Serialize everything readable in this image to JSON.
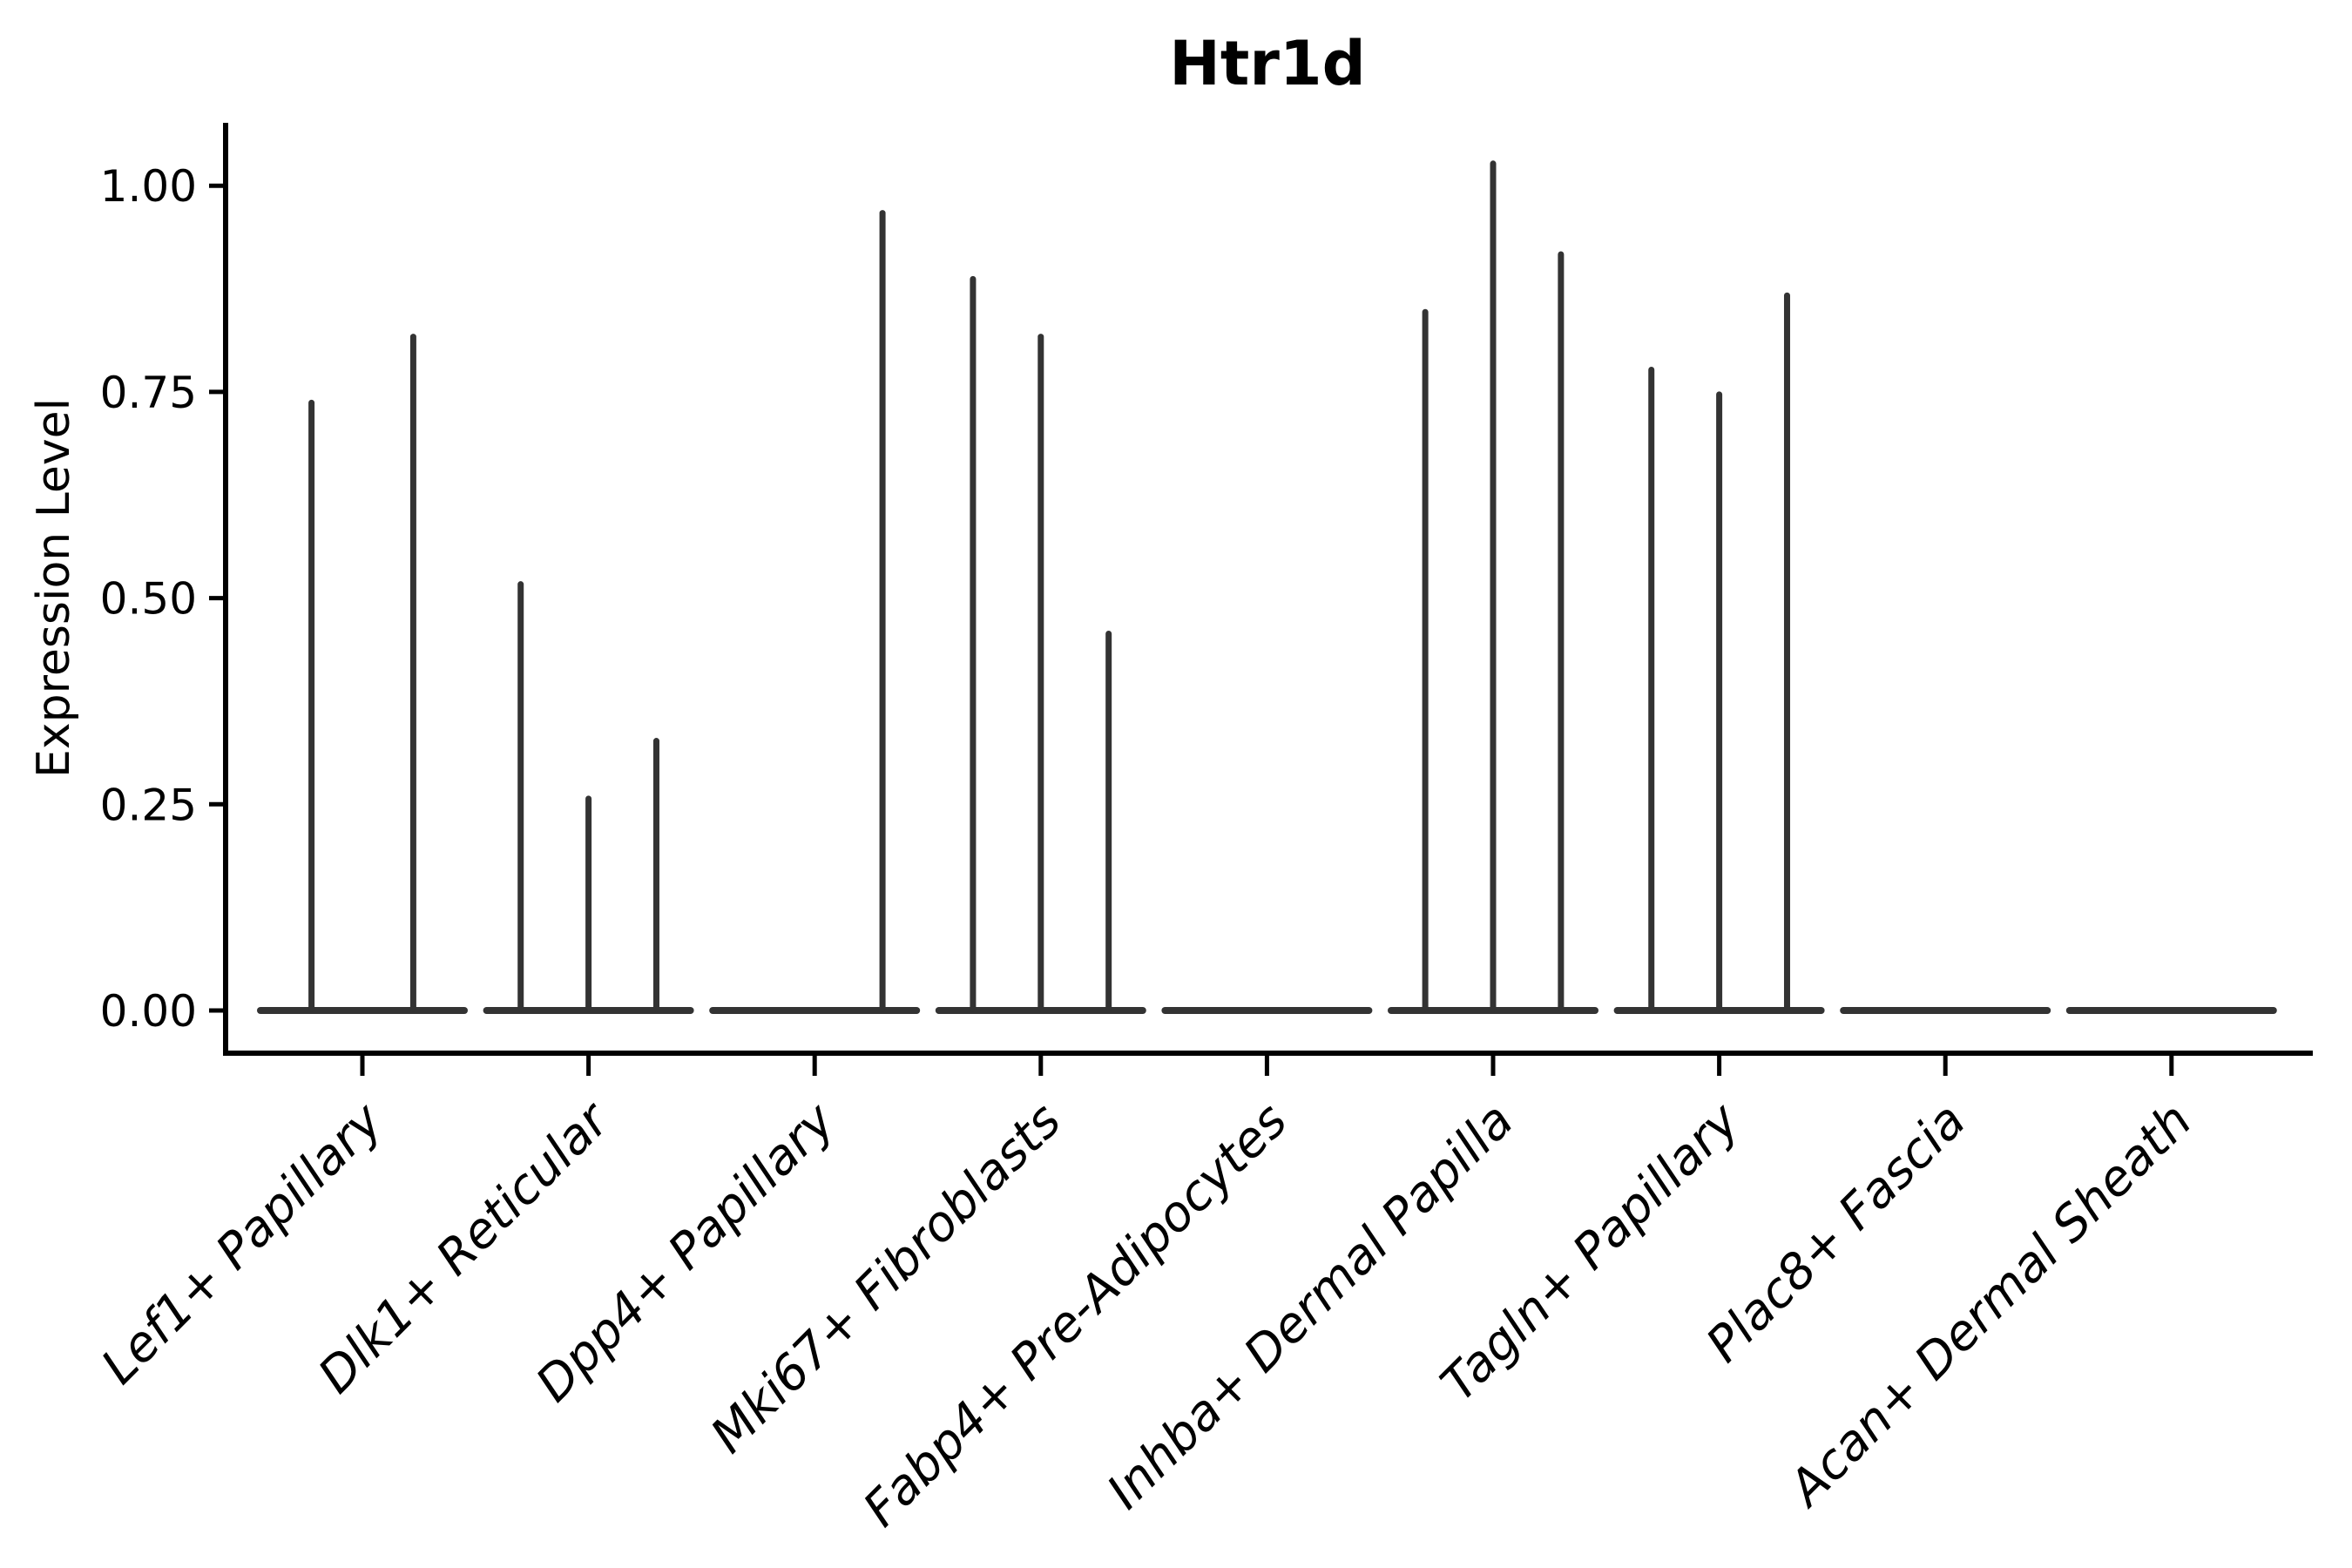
{
  "chart_data": {
    "type": "violin",
    "title": "Htr1d",
    "ylabel": "Expression Level",
    "xlabel": "",
    "ylim": [
      -0.05,
      1.08
    ],
    "grid": false,
    "legend": "none",
    "violin_color": "#333333",
    "axis_color": "#000000",
    "yticks": [
      {
        "label": "1.00",
        "value": 1.0
      },
      {
        "label": "0.75",
        "value": 0.75
      },
      {
        "label": "0.50",
        "value": 0.5
      },
      {
        "label": "0.25",
        "value": 0.25
      },
      {
        "label": "0.00",
        "value": 0.0
      }
    ],
    "categories": [
      {
        "label": "Lef1+ Papillary",
        "violins": [
          {
            "pos": -0.225,
            "peak": 0.74
          },
          {
            "pos": 0.225,
            "peak": 0.82
          }
        ]
      },
      {
        "label": "Dlk1+ Reticular",
        "violins": [
          {
            "pos": -0.3,
            "peak": 0.52
          },
          {
            "pos": 0.0,
            "peak": 0.26
          },
          {
            "pos": 0.3,
            "peak": 0.33
          }
        ]
      },
      {
        "label": "Dpp4+ Papillary",
        "violins": [
          {
            "pos": 0.3,
            "peak": 0.97
          }
        ]
      },
      {
        "label": "Mki67+ Fibroblasts",
        "violins": [
          {
            "pos": -0.3,
            "peak": 0.89
          },
          {
            "pos": 0.0,
            "peak": 0.82
          },
          {
            "pos": 0.3,
            "peak": 0.46
          }
        ]
      },
      {
        "label": "Fabp4+ Pre-Adipocytes",
        "violins": []
      },
      {
        "label": "Inhba+ Dermal Papilla",
        "violins": [
          {
            "pos": -0.3,
            "peak": 0.85
          },
          {
            "pos": 0.0,
            "peak": 1.03
          },
          {
            "pos": 0.3,
            "peak": 0.92
          }
        ]
      },
      {
        "label": "Tagln+ Papillary",
        "violins": [
          {
            "pos": -0.3,
            "peak": 0.78
          },
          {
            "pos": 0.0,
            "peak": 0.75
          },
          {
            "pos": 0.3,
            "peak": 0.87
          }
        ]
      },
      {
        "label": "Plac8+ Fascia",
        "violins": []
      },
      {
        "label": "Acan+ Dermal Sheath",
        "violins": []
      }
    ]
  }
}
